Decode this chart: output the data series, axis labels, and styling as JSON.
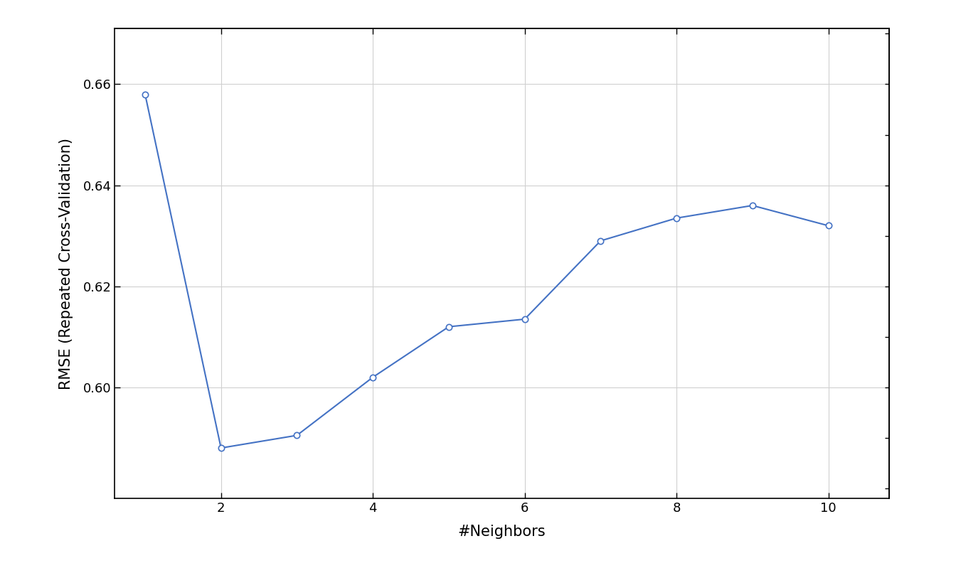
{
  "x": [
    1,
    2,
    3,
    4,
    5,
    6,
    7,
    8,
    9,
    10
  ],
  "y": [
    0.658,
    0.588,
    0.5905,
    0.602,
    0.612,
    0.6135,
    0.629,
    0.6335,
    0.636,
    0.632
  ],
  "xlabel": "#Neighbors",
  "ylabel": "RMSE (Repeated Cross-Validation)",
  "line_color": "#4472C4",
  "marker": "o",
  "marker_facecolor": "white",
  "marker_edgecolor": "#4472C4",
  "marker_size": 6,
  "linewidth": 1.5,
  "xlim": [
    0.6,
    10.8
  ],
  "ylim": [
    0.578,
    0.671
  ],
  "xticks": [
    2,
    4,
    6,
    8,
    10
  ],
  "yticks": [
    0.6,
    0.62,
    0.64,
    0.66
  ],
  "grid_color": "#d0d0d0",
  "background_color": "#ffffff",
  "outer_background": "#ffffff",
  "xlabel_fontsize": 15,
  "ylabel_fontsize": 15,
  "tick_fontsize": 13,
  "right_tick_values": [
    0.58,
    0.59,
    0.6,
    0.61,
    0.62,
    0.63,
    0.64,
    0.65,
    0.66,
    0.67
  ],
  "title": ""
}
